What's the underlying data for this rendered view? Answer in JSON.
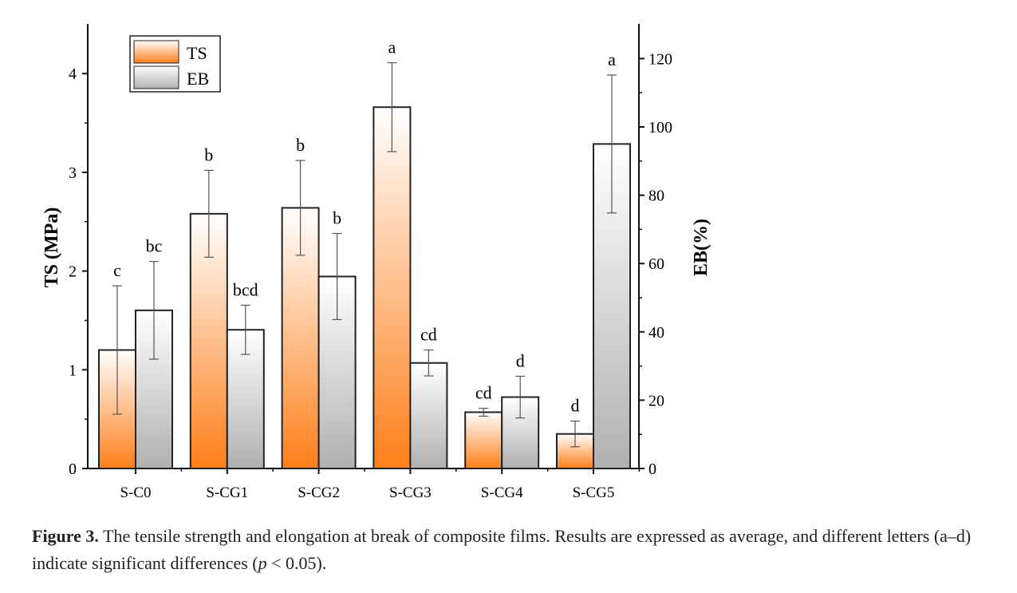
{
  "chart_data": {
    "type": "bar",
    "categories": [
      "S-C0",
      "S-CG1",
      "S-CG2",
      "S-CG3",
      "S-CG4",
      "S-CG5"
    ],
    "ylabel": "TS (MPa)",
    "y2label": "EB(%)",
    "ylim": [
      0,
      4.5
    ],
    "y2lim": [
      0,
      130
    ],
    "yticks": [
      0,
      1,
      2,
      3,
      4
    ],
    "y2ticks": [
      0,
      20,
      40,
      60,
      80,
      100,
      120
    ],
    "legend_position": "top-left",
    "grid": false,
    "series": [
      {
        "name": "TS",
        "axis": "left",
        "color": "#ff7f1a",
        "values": [
          1.2,
          2.58,
          2.64,
          3.66,
          0.57,
          0.35
        ],
        "errors": [
          0.65,
          0.44,
          0.48,
          0.45,
          0.04,
          0.13
        ],
        "letters": [
          "c",
          "b",
          "b",
          "a",
          "cd",
          "d"
        ]
      },
      {
        "name": "EB",
        "axis": "right",
        "color": "#b0b0b0",
        "values": [
          46.3,
          40.6,
          56.2,
          30.9,
          20.9,
          95.0
        ],
        "errors": [
          14.3,
          7.2,
          12.6,
          3.8,
          6.1,
          20.2
        ],
        "letters": [
          "bc",
          "bcd",
          "b",
          "cd",
          "d",
          "a"
        ]
      }
    ]
  },
  "caption": {
    "label": "Figure 3.",
    "text_1": " The tensile strength and elongation at break of composite films. Results are expressed as average, and different letters (a–d) indicate significant differences (",
    "p": "p",
    "text_2": " < 0.05)."
  }
}
